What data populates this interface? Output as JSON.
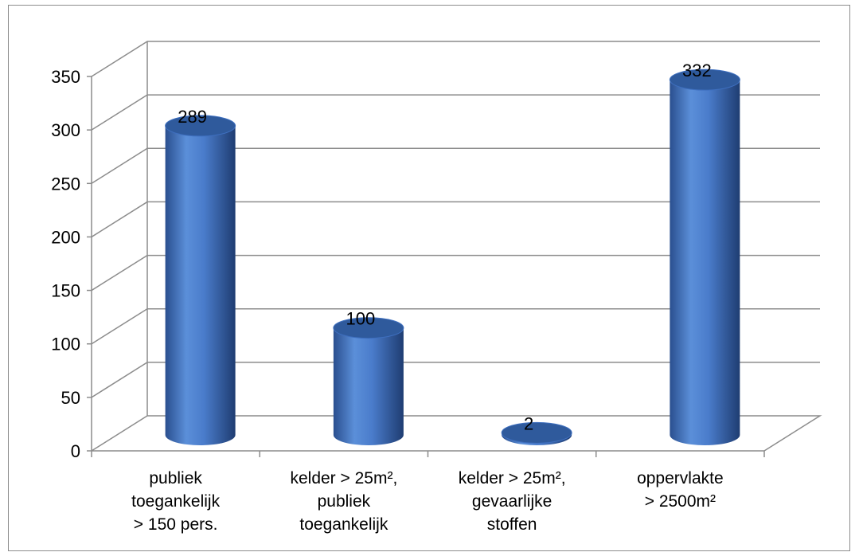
{
  "chart_data": {
    "type": "bar",
    "style": "3d-cylinder",
    "categories": [
      [
        "publiek",
        "toegankelijk",
        "> 150 pers."
      ],
      [
        "kelder > 25m²,",
        "publiek",
        "toegankelijk"
      ],
      [
        "kelder > 25m²,",
        "gevaarlijke",
        "stoffen"
      ],
      [
        "oppervlakte",
        "> 2500m²"
      ]
    ],
    "values": [
      289,
      100,
      2,
      332
    ],
    "data_labels": [
      "289",
      "100",
      "2",
      "332"
    ],
    "yticks": [
      "0",
      "50",
      "100",
      "150",
      "200",
      "250",
      "300",
      "350"
    ],
    "ylim": [
      0,
      350
    ],
    "grid": true,
    "legend": "none",
    "colors": {
      "bar_light": "#5b8fd9",
      "bar_mid": "#3e6fbf",
      "bar_dark": "#24457e",
      "bar_top": "#2f5a9c",
      "grid": "#8c8c8c"
    }
  }
}
